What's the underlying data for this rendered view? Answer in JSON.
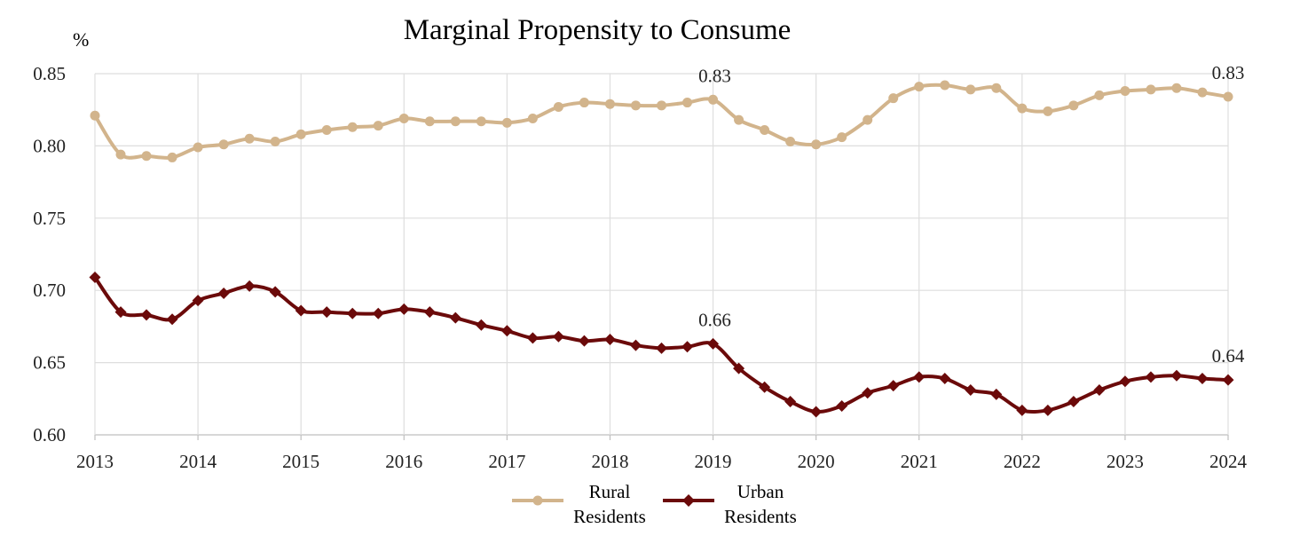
{
  "title": "Marginal Propensity to Consume",
  "unit_label": "%",
  "legend": [
    {
      "line1": "Rural",
      "line2": "Residents"
    },
    {
      "line1": "Urban",
      "line2": "Residents"
    }
  ],
  "chart_data": {
    "type": "line",
    "title": "Marginal Propensity to Consume",
    "ylabel": "%",
    "xlabel": "",
    "x_ticks": [
      "2013",
      "2014",
      "2015",
      "2016",
      "2017",
      "2018",
      "2019",
      "2020",
      "2021",
      "2022",
      "2023",
      "2024"
    ],
    "xlim": [
      2013,
      2024
    ],
    "ylim": [
      0.6,
      0.85
    ],
    "y_ticks": [
      "0.60",
      "0.65",
      "0.70",
      "0.75",
      "0.80",
      "0.85"
    ],
    "grid": true,
    "legend_position": "bottom",
    "colors": {
      "rural": "#D2B48C",
      "urban": "#6B0A0A"
    },
    "series": [
      {
        "name": "Rural Residents",
        "marker": "circle",
        "x": [
          2013,
          2013.25,
          2013.5,
          2013.75,
          2014,
          2014.25,
          2014.5,
          2014.75,
          2015,
          2015.25,
          2015.5,
          2015.75,
          2016,
          2016.25,
          2016.5,
          2016.75,
          2017,
          2017.25,
          2017.5,
          2017.75,
          2018,
          2018.25,
          2018.5,
          2018.75,
          2019,
          2019.25,
          2019.5,
          2019.75,
          2020,
          2020.25,
          2020.5,
          2020.75,
          2021,
          2021.25,
          2021.5,
          2021.75,
          2022,
          2022.25,
          2022.5,
          2022.75,
          2023,
          2023.25,
          2023.5,
          2023.75,
          2024
        ],
        "values": [
          0.821,
          0.794,
          0.793,
          0.792,
          0.799,
          0.801,
          0.805,
          0.803,
          0.808,
          0.811,
          0.813,
          0.814,
          0.819,
          0.817,
          0.817,
          0.817,
          0.816,
          0.819,
          0.827,
          0.83,
          0.829,
          0.828,
          0.828,
          0.83,
          0.832,
          0.818,
          0.811,
          0.803,
          0.801,
          0.806,
          0.818,
          0.833,
          0.841,
          0.842,
          0.839,
          0.84,
          0.826,
          0.824,
          0.828,
          0.835,
          0.838,
          0.839,
          0.84,
          0.837,
          0.834
        ],
        "annotations": [
          {
            "x": 2019,
            "label": "0.83"
          },
          {
            "x": 2024,
            "label": "0.83"
          }
        ]
      },
      {
        "name": "Urban Residents",
        "marker": "diamond",
        "x": [
          2013,
          2013.25,
          2013.5,
          2013.75,
          2014,
          2014.25,
          2014.5,
          2014.75,
          2015,
          2015.25,
          2015.5,
          2015.75,
          2016,
          2016.25,
          2016.5,
          2016.75,
          2017,
          2017.25,
          2017.5,
          2017.75,
          2018,
          2018.25,
          2018.5,
          2018.75,
          2019,
          2019.25,
          2019.5,
          2019.75,
          2020,
          2020.25,
          2020.5,
          2020.75,
          2021,
          2021.25,
          2021.5,
          2021.75,
          2022,
          2022.25,
          2022.5,
          2022.75,
          2023,
          2023.25,
          2023.5,
          2023.75,
          2024
        ],
        "values": [
          0.709,
          0.685,
          0.683,
          0.68,
          0.693,
          0.698,
          0.703,
          0.699,
          0.686,
          0.685,
          0.684,
          0.684,
          0.687,
          0.685,
          0.681,
          0.676,
          0.672,
          0.667,
          0.668,
          0.665,
          0.666,
          0.662,
          0.66,
          0.661,
          0.663,
          0.646,
          0.633,
          0.623,
          0.616,
          0.62,
          0.629,
          0.634,
          0.64,
          0.639,
          0.631,
          0.628,
          0.617,
          0.617,
          0.623,
          0.631,
          0.637,
          0.64,
          0.641,
          0.639,
          0.638
        ],
        "annotations": [
          {
            "x": 2019,
            "label": "0.66"
          },
          {
            "x": 2024,
            "label": "0.64"
          }
        ]
      }
    ]
  }
}
